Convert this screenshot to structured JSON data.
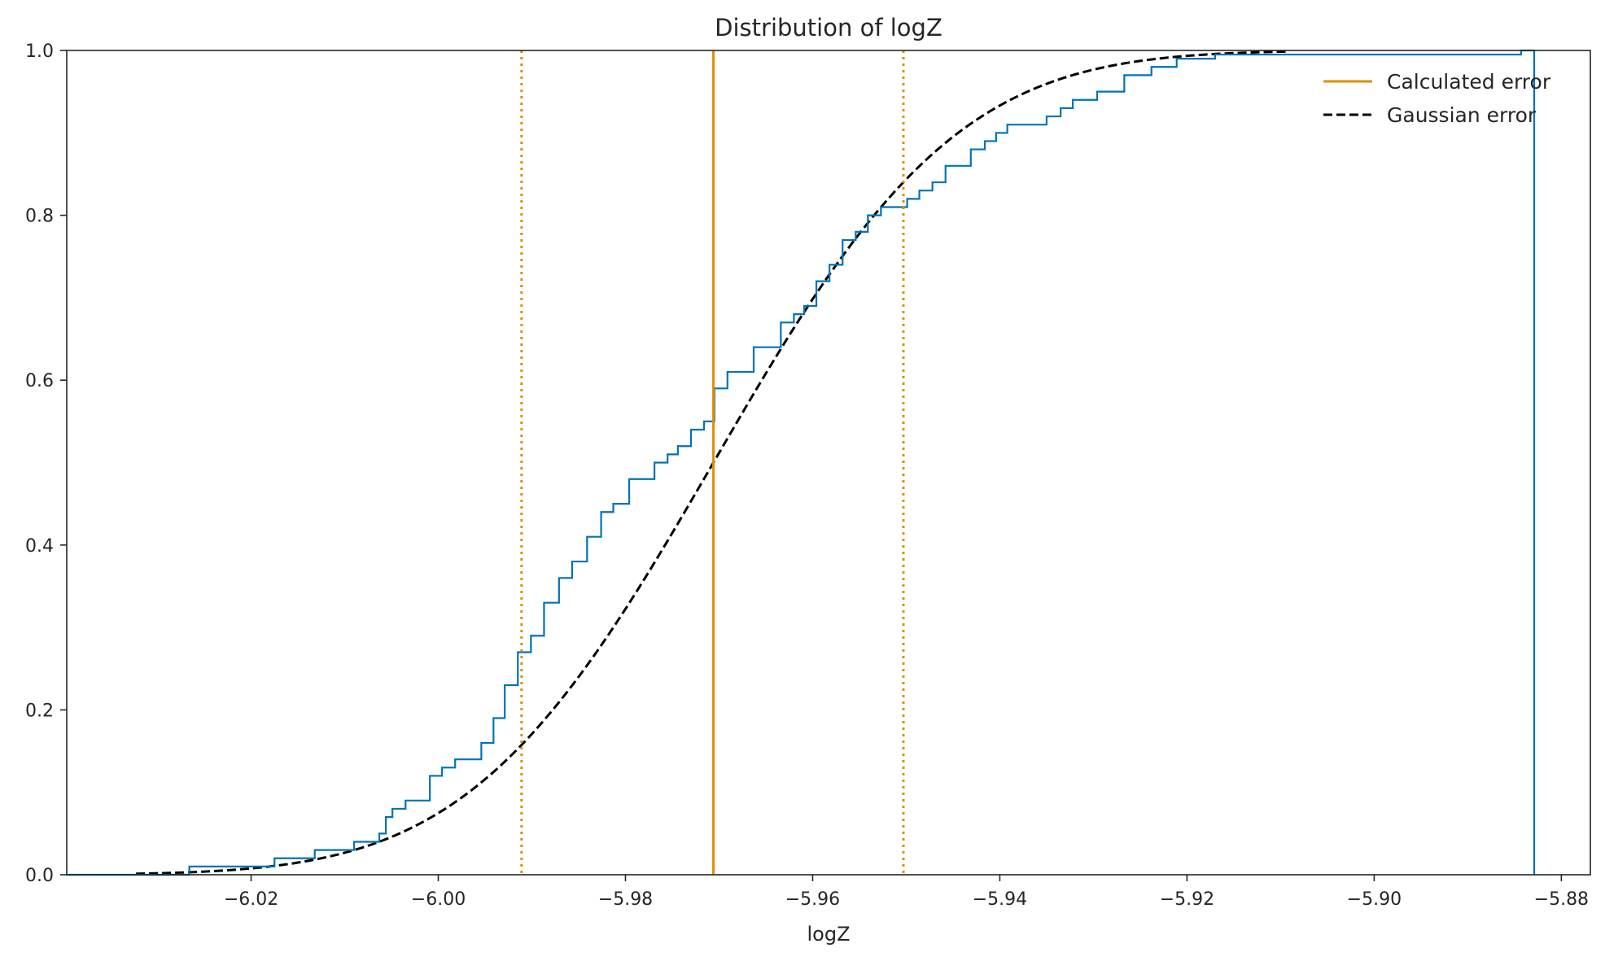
{
  "chart_data": {
    "type": "line",
    "title": "Distribution of logZ",
    "xlabel": "logZ",
    "ylabel": "",
    "xlim": [
      -6.0397,
      -5.8769
    ],
    "ylim": [
      0,
      1
    ],
    "xticks": [
      -6.02,
      -6.0,
      -5.98,
      -5.96,
      -5.94,
      -5.92,
      -5.9,
      -5.88
    ],
    "xtick_labels": [
      "−6.02",
      "−6.00",
      "−5.98",
      "−5.96",
      "−5.94",
      "−5.92",
      "−5.90",
      "−5.88"
    ],
    "yticks": [
      0,
      0.2,
      0.4,
      0.6,
      0.8,
      1.0
    ],
    "ytick_labels": [
      "0.0",
      "0.2",
      "0.4",
      "0.6",
      "0.8",
      "1.0"
    ],
    "grid": false,
    "legend_position": "top-right",
    "legend": [
      {
        "label": "Calculated error",
        "color": "#de8f05",
        "style": "solid"
      },
      {
        "label": "Gaussian error",
        "color": "#000000",
        "style": "dashed"
      }
    ],
    "ecdf": {
      "color": "#0173b2",
      "x": [
        -6.0266,
        -6.0175,
        -6.0132,
        -6.009,
        -6.0063,
        -6.0056,
        -6.0049,
        -6.0035,
        -6.0009,
        -5.9996,
        -5.9982,
        -5.9954,
        -5.9941,
        -5.9929,
        -5.9915,
        -5.9901,
        -5.9887,
        -5.9871,
        -5.9857,
        -5.9841,
        -5.9826,
        -5.9813,
        -5.9796,
        -5.9769,
        -5.9755,
        -5.9744,
        -5.973,
        -5.9716,
        -5.9705,
        -5.9691,
        -5.9663,
        -5.9634,
        -5.962,
        -5.9609,
        -5.9596,
        -5.9582,
        -5.9568,
        -5.9554,
        -5.9541,
        -5.9527,
        -5.9499,
        -5.9486,
        -5.9472,
        -5.9458,
        -5.9431,
        -5.9416,
        -5.9404,
        -5.9392,
        -5.935,
        -5.9335,
        -5.9322,
        -5.9296,
        -5.9267,
        -5.9238,
        -5.9211,
        -5.917,
        -5.8843,
        -5.8829
      ],
      "y": [
        0.01,
        0.02,
        0.03,
        0.04,
        0.05,
        0.07,
        0.08,
        0.09,
        0.12,
        0.13,
        0.14,
        0.16,
        0.19,
        0.23,
        0.27,
        0.29,
        0.33,
        0.36,
        0.38,
        0.41,
        0.44,
        0.45,
        0.48,
        0.5,
        0.51,
        0.52,
        0.54,
        0.55,
        0.59,
        0.61,
        0.64,
        0.67,
        0.68,
        0.69,
        0.72,
        0.74,
        0.77,
        0.78,
        0.8,
        0.81,
        0.82,
        0.83,
        0.84,
        0.86,
        0.88,
        0.89,
        0.9,
        0.91,
        0.92,
        0.93,
        0.94,
        0.95,
        0.97,
        0.98,
        0.99,
        0.995,
        1.0,
        0.0
      ]
    },
    "calculated_error": {
      "mean": -5.9706,
      "lower": -5.9911,
      "upper": -5.9503,
      "color": "#de8f05"
    },
    "gaussian_error": {
      "mean": -5.9706,
      "sigma": 0.0204,
      "x_min": -6.0323,
      "x_max": -5.9092,
      "color": "#000000"
    }
  }
}
